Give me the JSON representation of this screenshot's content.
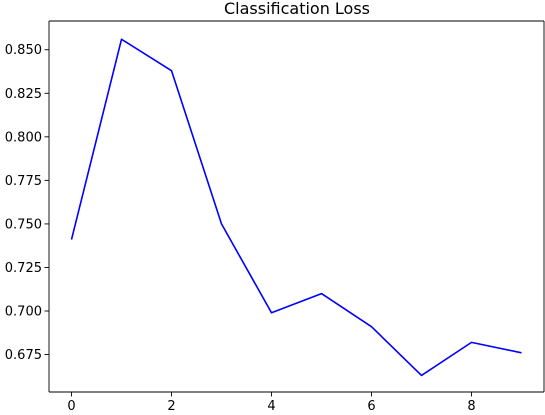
{
  "chart_data": {
    "type": "line",
    "title": "Classification Loss",
    "xlabel": "",
    "ylabel": "",
    "xlim": [
      -0.45,
      9.45
    ],
    "ylim": [
      0.6535,
      0.8665
    ],
    "xticks": [
      0,
      2,
      4,
      6,
      8
    ],
    "xtick_labels": [
      "0",
      "2",
      "4",
      "6",
      "8"
    ],
    "yticks": [
      0.675,
      0.7,
      0.725,
      0.75,
      0.775,
      0.8,
      0.825,
      0.85
    ],
    "ytick_labels": [
      "0.675",
      "0.700",
      "0.725",
      "0.750",
      "0.775",
      "0.800",
      "0.825",
      "0.850"
    ],
    "grid": false,
    "legend": false,
    "series": [
      {
        "color": "#0000ff",
        "x": [
          0,
          1,
          2,
          3,
          4,
          5,
          6,
          7,
          8,
          9
        ],
        "y": [
          0.741,
          0.856,
          0.838,
          0.75,
          0.699,
          0.71,
          0.691,
          0.663,
          0.682,
          0.676
        ]
      }
    ]
  }
}
